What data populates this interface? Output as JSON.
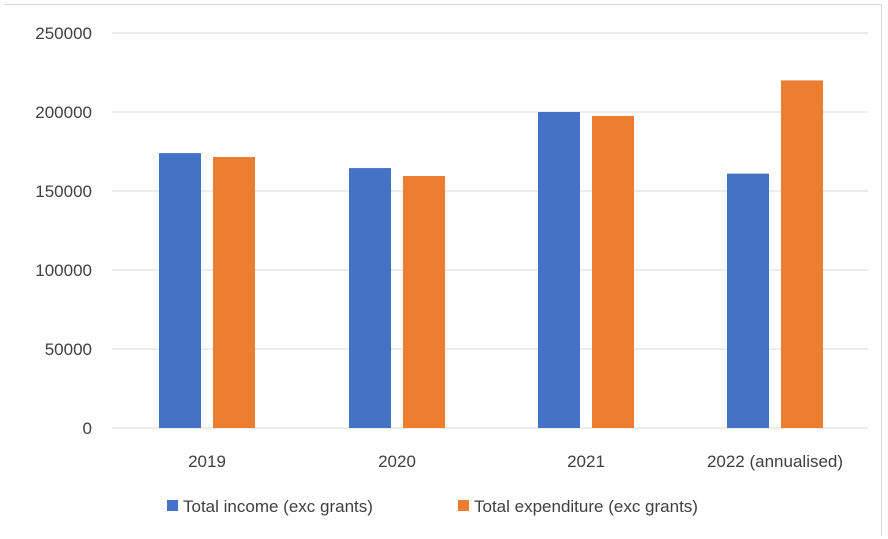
{
  "chart_data": {
    "type": "bar",
    "title": "",
    "xlabel": "",
    "ylabel": "",
    "categories": [
      "2019",
      "2020",
      "2021",
      "2022 (annualised)"
    ],
    "series": [
      {
        "name": "Total income (exc grants)",
        "color": "#4472c4",
        "values": [
          174000,
          164500,
          200000,
          161000
        ]
      },
      {
        "name": "Total expenditure (exc grants)",
        "color": "#ed7d31",
        "values": [
          171500,
          159500,
          197500,
          220000
        ]
      }
    ],
    "ylim": [
      0,
      250000
    ],
    "yticks": [
      0,
      50000,
      100000,
      150000,
      200000,
      250000
    ],
    "ytick_labels": [
      "0",
      "50000",
      "100000",
      "150000",
      "200000",
      "250000"
    ],
    "grid": true,
    "gridline_color": "#d9d9d9",
    "legend_position": "bottom"
  }
}
